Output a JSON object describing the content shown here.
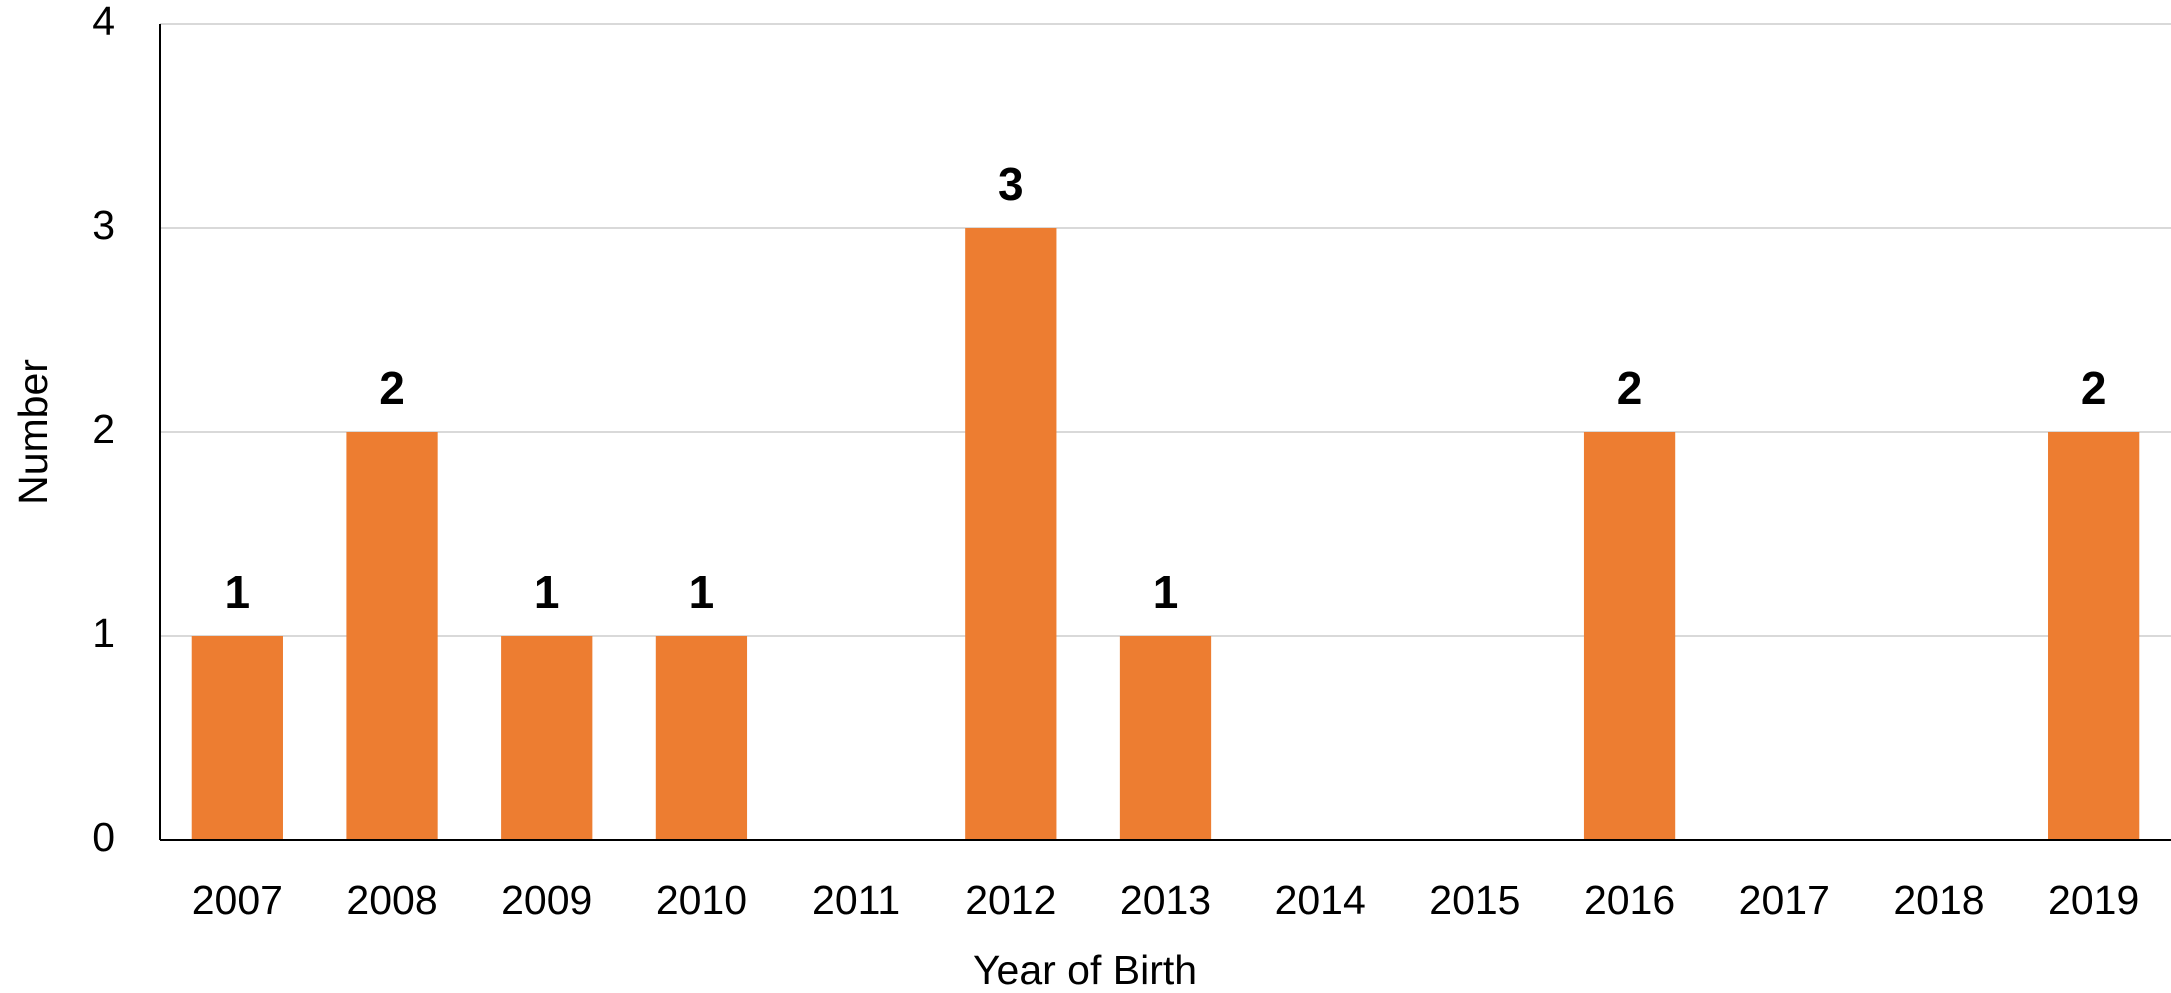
{
  "chart_data": {
    "type": "bar",
    "categories": [
      "2007",
      "2008",
      "2009",
      "2010",
      "2011",
      "2012",
      "2013",
      "2014",
      "2015",
      "2016",
      "2017",
      "2018",
      "2019"
    ],
    "values": [
      1,
      2,
      1,
      1,
      0,
      3,
      1,
      0,
      0,
      2,
      0,
      0,
      2
    ],
    "color": "#ed7d31",
    "ylim": [
      0,
      4
    ],
    "yticks": [
      0,
      1,
      2,
      3,
      4
    ],
    "grid": true,
    "x_label": "Year of Birth",
    "y_label": "Number"
  }
}
